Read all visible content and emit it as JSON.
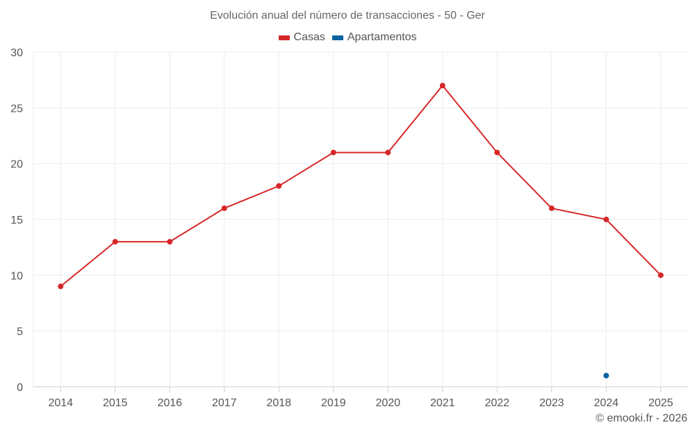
{
  "chart_data": {
    "type": "line",
    "title": "Evolución anual del número de transacciones - 50 - Ger",
    "categories": [
      "2014",
      "2015",
      "2016",
      "2017",
      "2018",
      "2019",
      "2020",
      "2021",
      "2022",
      "2023",
      "2024",
      "2025"
    ],
    "series": [
      {
        "name": "Casas",
        "color": "#d62728",
        "values": [
          9,
          13,
          13,
          16,
          18,
          21,
          21,
          27,
          21,
          16,
          15,
          10
        ]
      },
      {
        "name": "Apartamentos",
        "color": "#0a64a0",
        "values": [
          null,
          null,
          null,
          null,
          null,
          null,
          null,
          null,
          null,
          null,
          1,
          null
        ]
      }
    ],
    "ylim": [
      0,
      30
    ],
    "yticks": [
      "0",
      "5",
      "10",
      "15",
      "20",
      "25",
      "30"
    ],
    "grid": true,
    "legend_position": "top"
  },
  "credit": "© emooki.fr - 2026"
}
